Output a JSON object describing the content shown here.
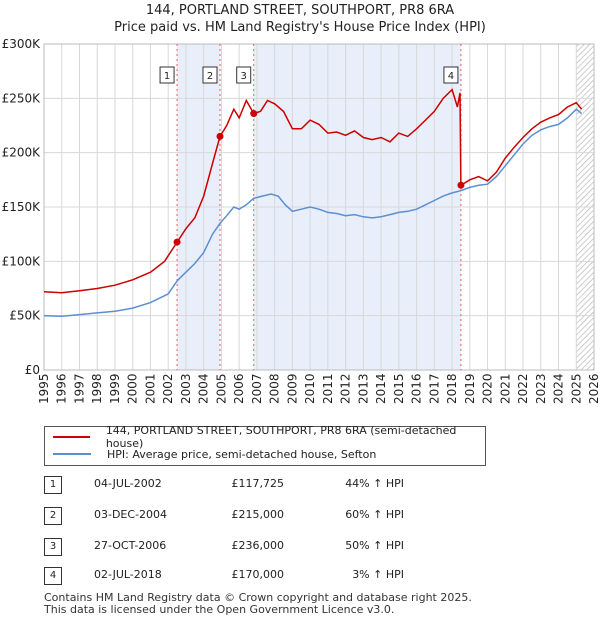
{
  "chart_data": {
    "type": "line",
    "title": "144, PORTLAND STREET, SOUTHPORT, PR8 6RA",
    "subtitle": "Price paid vs. HM Land Registry's House Price Index (HPI)",
    "x_range": [
      1995,
      2026
    ],
    "ylim": [
      0,
      300000
    ],
    "y_ticks": [
      {
        "value": 0,
        "label": "£0"
      },
      {
        "value": 50000,
        "label": "£50K"
      },
      {
        "value": 100000,
        "label": "£100K"
      },
      {
        "value": 150000,
        "label": "£150K"
      },
      {
        "value": 200000,
        "label": "£200K"
      },
      {
        "value": 250000,
        "label": "£250K"
      },
      {
        "value": 300000,
        "label": "£300K"
      }
    ],
    "x_ticks": [
      "1995",
      "1996",
      "1997",
      "1998",
      "1999",
      "2000",
      "2001",
      "2002",
      "2003",
      "2004",
      "2005",
      "2006",
      "2007",
      "2008",
      "2009",
      "2010",
      "2011",
      "2012",
      "2013",
      "2014",
      "2015",
      "2016",
      "2017",
      "2018",
      "2019",
      "2020",
      "2021",
      "2022",
      "2023",
      "2024",
      "2025",
      "2026"
    ],
    "shaded_spans": [
      [
        2002.5,
        2004.92
      ],
      [
        2006.82,
        2018.5
      ]
    ],
    "hatched_from": 2025.0,
    "series": [
      {
        "name": "144, PORTLAND STREET, SOUTHPORT, PR8 6RA (semi-detached house)",
        "color": "#cc0000",
        "points": [
          [
            1995.0,
            72000
          ],
          [
            1996.0,
            71000
          ],
          [
            1997.0,
            73000
          ],
          [
            1998.0,
            75000
          ],
          [
            1999.0,
            78000
          ],
          [
            2000.0,
            83000
          ],
          [
            2001.0,
            90000
          ],
          [
            2001.8,
            100000
          ],
          [
            2002.5,
            117725
          ],
          [
            2003.0,
            130000
          ],
          [
            2003.5,
            140000
          ],
          [
            2004.0,
            160000
          ],
          [
            2004.5,
            190000
          ],
          [
            2004.92,
            215000
          ],
          [
            2005.3,
            225000
          ],
          [
            2005.7,
            240000
          ],
          [
            2006.0,
            232000
          ],
          [
            2006.4,
            248000
          ],
          [
            2006.82,
            236000
          ],
          [
            2007.2,
            238000
          ],
          [
            2007.6,
            248000
          ],
          [
            2008.0,
            245000
          ],
          [
            2008.5,
            238000
          ],
          [
            2009.0,
            222000
          ],
          [
            2009.5,
            222000
          ],
          [
            2010.0,
            230000
          ],
          [
            2010.5,
            226000
          ],
          [
            2011.0,
            218000
          ],
          [
            2011.5,
            219000
          ],
          [
            2012.0,
            216000
          ],
          [
            2012.5,
            220000
          ],
          [
            2013.0,
            214000
          ],
          [
            2013.5,
            212000
          ],
          [
            2014.0,
            214000
          ],
          [
            2014.5,
            210000
          ],
          [
            2015.0,
            218000
          ],
          [
            2015.5,
            215000
          ],
          [
            2016.0,
            222000
          ],
          [
            2016.5,
            230000
          ],
          [
            2017.0,
            238000
          ],
          [
            2017.5,
            250000
          ],
          [
            2018.0,
            258000
          ],
          [
            2018.3,
            242000
          ],
          [
            2018.45,
            255000
          ],
          [
            2018.5,
            170000
          ],
          [
            2019.0,
            175000
          ],
          [
            2019.5,
            178000
          ],
          [
            2020.0,
            174000
          ],
          [
            2020.5,
            182000
          ],
          [
            2021.0,
            195000
          ],
          [
            2021.5,
            205000
          ],
          [
            2022.0,
            214000
          ],
          [
            2022.5,
            222000
          ],
          [
            2023.0,
            228000
          ],
          [
            2023.5,
            232000
          ],
          [
            2024.0,
            235000
          ],
          [
            2024.5,
            242000
          ],
          [
            2025.0,
            246000
          ],
          [
            2025.3,
            240000
          ]
        ]
      },
      {
        "name": "HPI: Average price, semi-detached house, Sefton",
        "color": "#5b8fd0",
        "points": [
          [
            1995.0,
            50000
          ],
          [
            1996.0,
            49500
          ],
          [
            1997.0,
            51000
          ],
          [
            1998.0,
            52500
          ],
          [
            1999.0,
            54000
          ],
          [
            2000.0,
            57000
          ],
          [
            2001.0,
            62000
          ],
          [
            2002.0,
            70000
          ],
          [
            2002.5,
            82000
          ],
          [
            2003.0,
            90000
          ],
          [
            2003.5,
            98000
          ],
          [
            2004.0,
            108000
          ],
          [
            2004.5,
            125000
          ],
          [
            2004.92,
            135000
          ],
          [
            2005.3,
            142000
          ],
          [
            2005.7,
            150000
          ],
          [
            2006.0,
            148000
          ],
          [
            2006.4,
            152000
          ],
          [
            2006.82,
            158000
          ],
          [
            2007.3,
            160000
          ],
          [
            2007.8,
            162000
          ],
          [
            2008.2,
            160000
          ],
          [
            2008.6,
            152000
          ],
          [
            2009.0,
            146000
          ],
          [
            2009.5,
            148000
          ],
          [
            2010.0,
            150000
          ],
          [
            2010.5,
            148000
          ],
          [
            2011.0,
            145000
          ],
          [
            2011.5,
            144000
          ],
          [
            2012.0,
            142000
          ],
          [
            2012.5,
            143000
          ],
          [
            2013.0,
            141000
          ],
          [
            2013.5,
            140000
          ],
          [
            2014.0,
            141000
          ],
          [
            2014.5,
            143000
          ],
          [
            2015.0,
            145000
          ],
          [
            2015.5,
            146000
          ],
          [
            2016.0,
            148000
          ],
          [
            2016.5,
            152000
          ],
          [
            2017.0,
            156000
          ],
          [
            2017.5,
            160000
          ],
          [
            2018.0,
            163000
          ],
          [
            2018.5,
            165000
          ],
          [
            2019.0,
            168000
          ],
          [
            2019.5,
            170000
          ],
          [
            2020.0,
            171000
          ],
          [
            2020.5,
            178000
          ],
          [
            2021.0,
            188000
          ],
          [
            2021.5,
            198000
          ],
          [
            2022.0,
            208000
          ],
          [
            2022.5,
            216000
          ],
          [
            2023.0,
            221000
          ],
          [
            2023.5,
            224000
          ],
          [
            2024.0,
            226000
          ],
          [
            2024.5,
            232000
          ],
          [
            2025.0,
            240000
          ],
          [
            2025.3,
            236000
          ]
        ]
      }
    ],
    "sales": [
      {
        "label": "1",
        "x": 2002.5,
        "value": 117725
      },
      {
        "label": "2",
        "x": 2004.92,
        "value": 215000
      },
      {
        "label": "3",
        "x": 2006.82,
        "value": 236000
      },
      {
        "label": "4",
        "x": 2018.5,
        "value": 170000
      }
    ]
  },
  "legend": {
    "price_paid": "144, PORTLAND STREET, SOUTHPORT, PR8 6RA (semi-detached house)",
    "hpi": "HPI: Average price, semi-detached house, Sefton"
  },
  "transactions": [
    {
      "num": "1",
      "date": "04-JUL-2002",
      "price": "£117,725",
      "hpi": "44% ↑ HPI"
    },
    {
      "num": "2",
      "date": "03-DEC-2004",
      "price": "£215,000",
      "hpi": "60% ↑ HPI"
    },
    {
      "num": "3",
      "date": "27-OCT-2006",
      "price": "£236,000",
      "hpi": "50% ↑ HPI"
    },
    {
      "num": "4",
      "date": "02-JUL-2018",
      "price": "£170,000",
      "hpi": "3% ↑ HPI"
    }
  ],
  "footer": {
    "line1": "Contains HM Land Registry data © Crown copyright and database right 2025.",
    "line2": "This data is licensed under the Open Government Licence v3.0."
  }
}
